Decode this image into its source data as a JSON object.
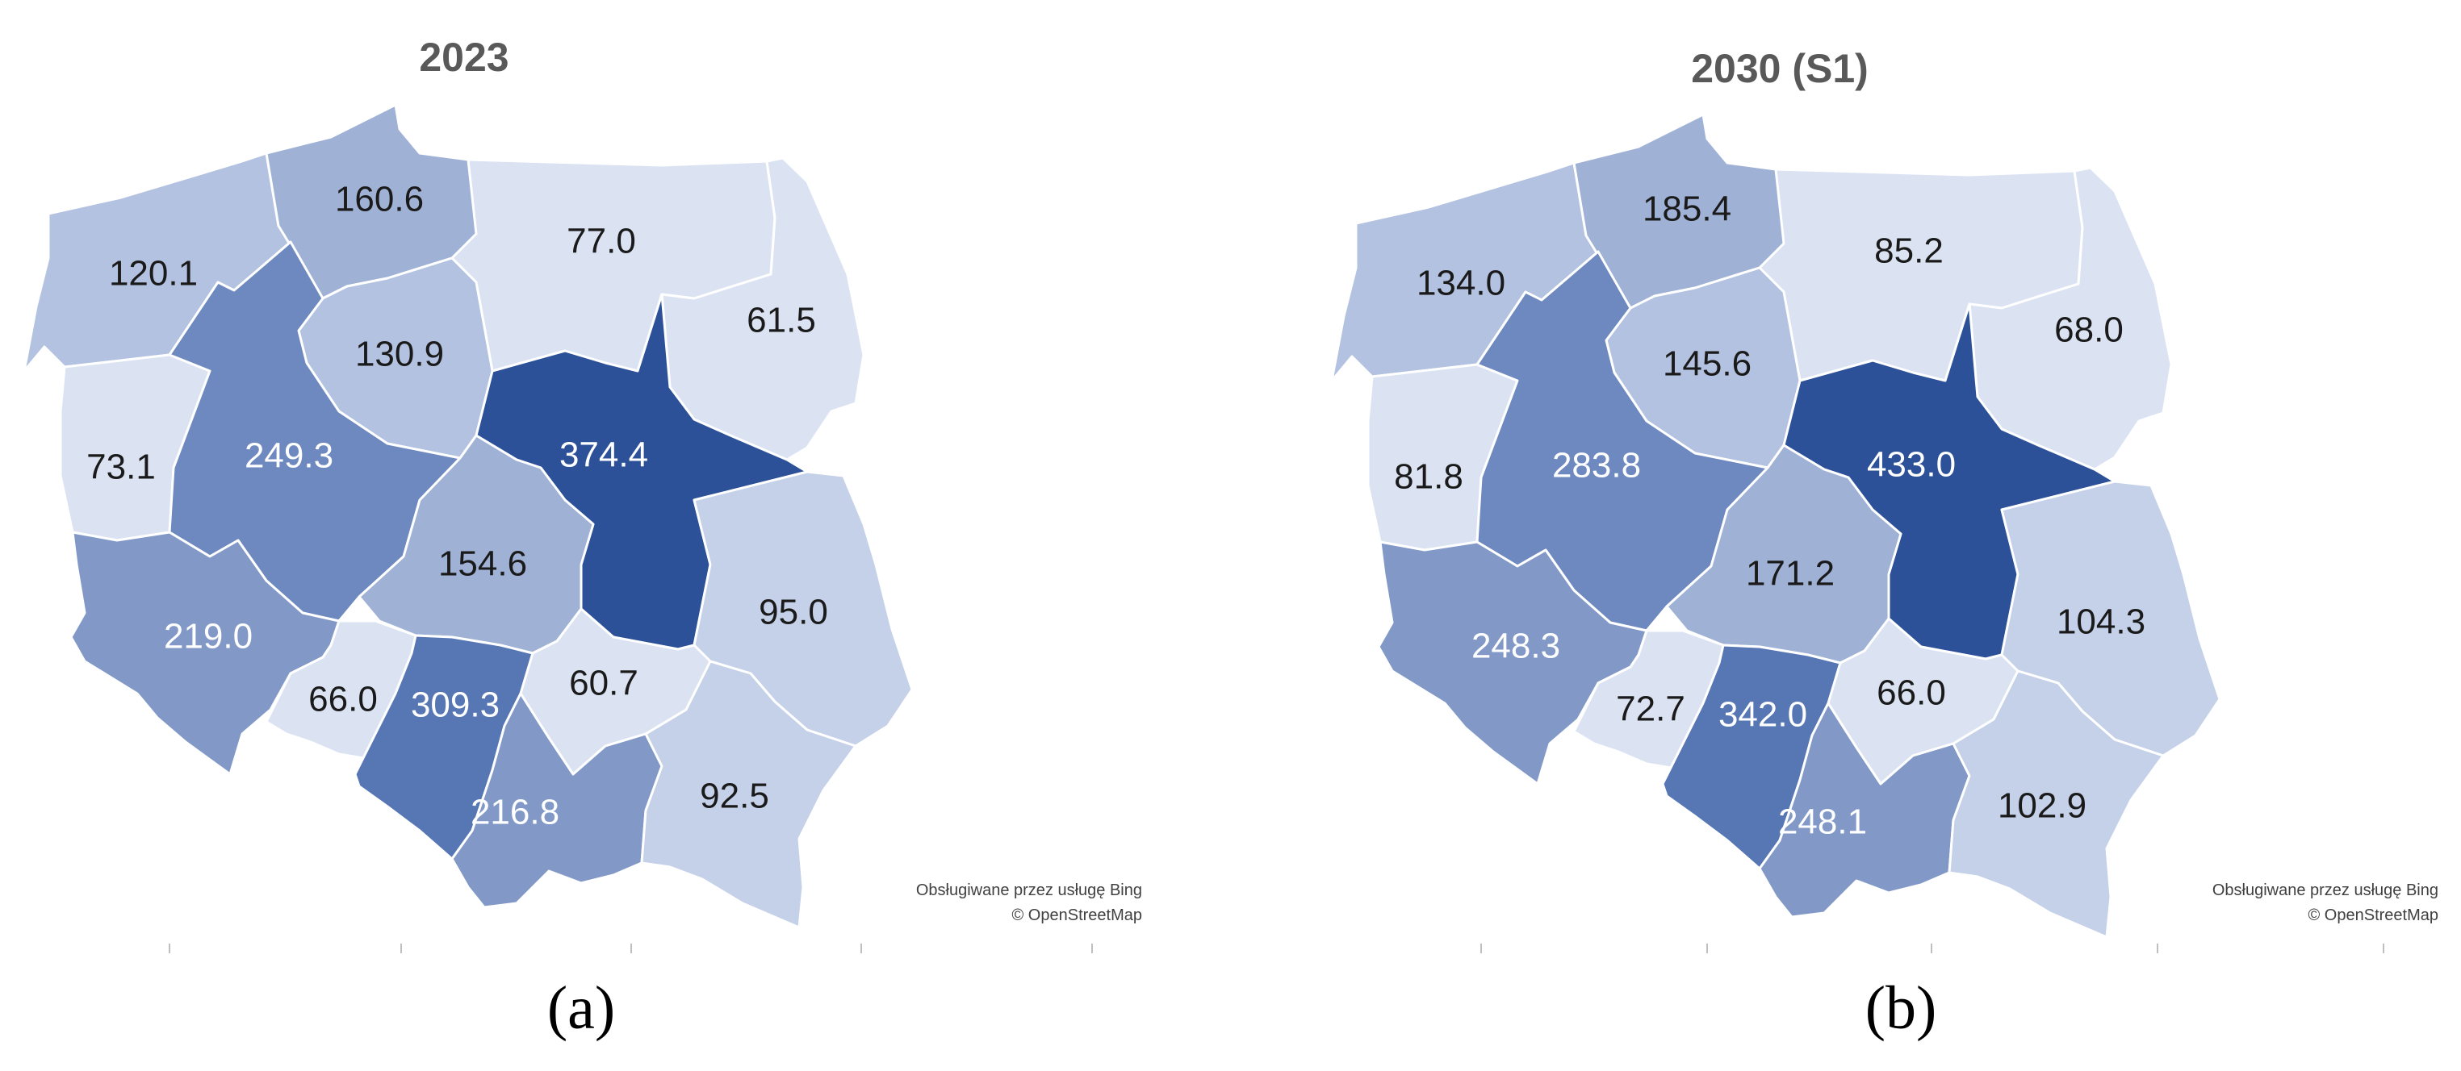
{
  "colors": {
    "lightest": "#dbe3f3",
    "light": "#c4d1e8",
    "medium_light": "#b2c2e0",
    "medium": "#9fb2d6",
    "medium_dark": "#8299c8",
    "dark": "#6e89bf",
    "darker": "#5676b4",
    "darkest": "#2c5198",
    "text_dark": "#1a1a1a",
    "text_light": "#ffffff"
  },
  "credit": {
    "line1": "Obsługiwane przez usługę Bing",
    "line2": "© OpenStreetMap"
  },
  "maps": [
    {
      "title": "2023",
      "panel_label": "(a)",
      "regions": [
        {
          "name": "zachodniopomorskie",
          "value": "120.1",
          "shade": "medium_light",
          "dark_text": true
        },
        {
          "name": "pomorskie",
          "value": "160.6",
          "shade": "medium",
          "dark_text": true
        },
        {
          "name": "warmińsko-mazurskie",
          "value": "77.0",
          "shade": "lightest",
          "dark_text": true
        },
        {
          "name": "podlaskie",
          "value": "61.5",
          "shade": "lightest",
          "dark_text": true
        },
        {
          "name": "kujawsko-pomorskie",
          "value": "130.9",
          "shade": "medium_light",
          "dark_text": true
        },
        {
          "name": "lubuskie",
          "value": "73.1",
          "shade": "lightest",
          "dark_text": true
        },
        {
          "name": "wielkopolskie",
          "value": "249.3",
          "shade": "dark",
          "dark_text": false
        },
        {
          "name": "mazowieckie",
          "value": "374.4",
          "shade": "darkest",
          "dark_text": false
        },
        {
          "name": "łódzkie",
          "value": "154.6",
          "shade": "medium",
          "dark_text": true
        },
        {
          "name": "lubelskie",
          "value": "95.0",
          "shade": "light",
          "dark_text": true
        },
        {
          "name": "dolnośląskie",
          "value": "219.0",
          "shade": "medium_dark",
          "dark_text": false
        },
        {
          "name": "opolskie",
          "value": "66.0",
          "shade": "lightest",
          "dark_text": true
        },
        {
          "name": "śląskie",
          "value": "309.3",
          "shade": "darker",
          "dark_text": false
        },
        {
          "name": "świętokrzyskie",
          "value": "60.7",
          "shade": "lightest",
          "dark_text": true
        },
        {
          "name": "małopolskie",
          "value": "216.8",
          "shade": "medium_dark",
          "dark_text": false
        },
        {
          "name": "podkarpackie",
          "value": "92.5",
          "shade": "light",
          "dark_text": true
        }
      ]
    },
    {
      "title": "2030 (S1)",
      "panel_label": "(b)",
      "regions": [
        {
          "name": "zachodniopomorskie",
          "value": "134.0",
          "shade": "medium_light",
          "dark_text": true
        },
        {
          "name": "pomorskie",
          "value": "185.4",
          "shade": "medium",
          "dark_text": true
        },
        {
          "name": "warmińsko-mazurskie",
          "value": "85.2",
          "shade": "lightest",
          "dark_text": true
        },
        {
          "name": "podlaskie",
          "value": "68.0",
          "shade": "lightest",
          "dark_text": true
        },
        {
          "name": "kujawsko-pomorskie",
          "value": "145.6",
          "shade": "medium_light",
          "dark_text": true
        },
        {
          "name": "lubuskie",
          "value": "81.8",
          "shade": "lightest",
          "dark_text": true
        },
        {
          "name": "wielkopolskie",
          "value": "283.8",
          "shade": "dark",
          "dark_text": false
        },
        {
          "name": "mazowieckie",
          "value": "433.0",
          "shade": "darkest",
          "dark_text": false
        },
        {
          "name": "łódzkie",
          "value": "171.2",
          "shade": "medium",
          "dark_text": true
        },
        {
          "name": "lubelskie",
          "value": "104.3",
          "shade": "light",
          "dark_text": true
        },
        {
          "name": "dolnośląskie",
          "value": "248.3",
          "shade": "medium_dark",
          "dark_text": false
        },
        {
          "name": "opolskie",
          "value": "72.7",
          "shade": "lightest",
          "dark_text": true
        },
        {
          "name": "śląskie",
          "value": "342.0",
          "shade": "darker",
          "dark_text": false
        },
        {
          "name": "świętokrzyskie",
          "value": "66.0",
          "shade": "lightest",
          "dark_text": true
        },
        {
          "name": "małopolskie",
          "value": "248.1",
          "shade": "medium_dark",
          "dark_text": false
        },
        {
          "name": "podkarpackie",
          "value": "102.9",
          "shade": "light",
          "dark_text": true
        }
      ]
    }
  ]
}
